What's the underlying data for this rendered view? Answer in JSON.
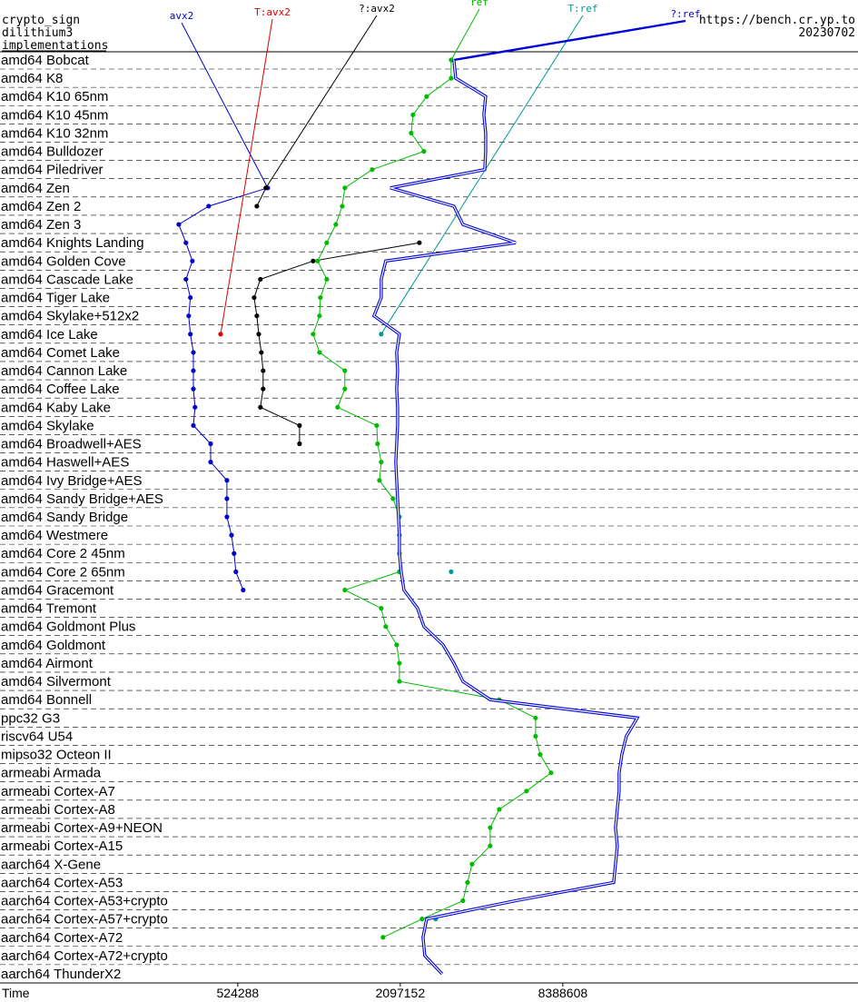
{
  "chart_data": {
    "type": "line",
    "title_lines": [
      "crypto_sign",
      "dilithium3",
      "implementations"
    ],
    "source": "https://bench.cr.yp.to",
    "date": "20230702",
    "xlabel": "Time",
    "log_x": true,
    "xlim": [
      69000,
      104000000
    ],
    "xticks": [
      524288,
      2097152,
      8388608
    ],
    "categories": [
      "amd64 Bobcat",
      "amd64 K8",
      "amd64 K10 65nm",
      "amd64 K10 45nm",
      "amd64 K10 32nm",
      "amd64 Bulldozer",
      "amd64 Piledriver",
      "amd64 Zen",
      "amd64 Zen 2",
      "amd64 Zen 3",
      "amd64 Knights Landing",
      "amd64 Golden Cove",
      "amd64 Cascade Lake",
      "amd64 Tiger Lake",
      "amd64 Skylake+512x2",
      "amd64 Ice Lake",
      "amd64 Comet Lake",
      "amd64 Cannon Lake",
      "amd64 Coffee Lake",
      "amd64 Kaby Lake",
      "amd64 Skylake",
      "amd64 Broadwell+AES",
      "amd64 Haswell+AES",
      "amd64 Ivy Bridge+AES",
      "amd64 Sandy Bridge+AES",
      "amd64 Sandy Bridge",
      "amd64 Westmere",
      "amd64 Core 2 45nm",
      "amd64 Core 2 65nm",
      "amd64 Gracemont",
      "amd64 Tremont",
      "amd64 Goldmont Plus",
      "amd64 Goldmont",
      "amd64 Airmont",
      "amd64 Silvermont",
      "amd64 Bonnell",
      "ppc32 G3",
      "riscv64 U54",
      "mipso32 Octeon II",
      "armeabi Armada",
      "armeabi Cortex-A7",
      "armeabi Cortex-A8",
      "armeabi Cortex-A9+NEON",
      "armeabi Cortex-A15",
      "aarch64 X-Gene",
      "aarch64 Cortex-A53",
      "aarch64 Cortex-A53+crypto",
      "aarch64 Cortex-A57+crypto",
      "aarch64 Cortex-A72",
      "aarch64 Cortex-A72+crypto",
      "aarch64 ThunderX2"
    ],
    "series": [
      {
        "name": "avx2",
        "color": "#0000cc",
        "markers": true,
        "double": false,
        "values": [
          null,
          null,
          null,
          null,
          null,
          null,
          null,
          677000,
          409000,
          317000,
          337000,
          356000,
          337000,
          350000,
          345000,
          350000,
          359000,
          359000,
          359000,
          364000,
          359000,
          416000,
          416000,
          478000,
          478000,
          478000,
          497000,
          508000,
          516000,
          549000,
          null,
          null,
          null,
          null,
          null,
          null,
          null,
          null,
          null,
          null,
          null,
          null,
          null,
          null,
          null,
          null,
          null,
          null,
          null,
          null,
          null
        ]
      },
      {
        "name": "T:avx2",
        "color": "#dd0000",
        "markers": true,
        "double": false,
        "values": [
          null,
          null,
          null,
          null,
          null,
          null,
          null,
          null,
          null,
          null,
          null,
          null,
          null,
          null,
          null,
          453000,
          null,
          null,
          null,
          null,
          null,
          null,
          null,
          null,
          null,
          null,
          null,
          null,
          null,
          null,
          null,
          null,
          null,
          null,
          null,
          null,
          null,
          null,
          null,
          null,
          null,
          null,
          null,
          null,
          null,
          null,
          null,
          null,
          null,
          null,
          null
        ]
      },
      {
        "name": "?:avx2",
        "color": "#000000",
        "markers": true,
        "double": false,
        "values": [
          null,
          null,
          null,
          null,
          null,
          null,
          null,
          666000,
          617000,
          null,
          2468000,
          997000,
          636000,
          603000,
          617000,
          627000,
          641000,
          651000,
          651000,
          636000,
          888000,
          888000,
          null,
          null,
          null,
          null,
          null,
          null,
          null,
          null,
          null,
          null,
          null,
          null,
          null,
          null,
          null,
          null,
          null,
          null,
          null,
          null,
          null,
          null,
          null,
          null,
          null,
          null,
          null,
          null,
          null
        ]
      },
      {
        "name": "ref",
        "color": "#00bb00",
        "markers": true,
        "double": false,
        "values": [
          3236000,
          3236000,
          2625000,
          2337000,
          2301000,
          2565000,
          1650000,
          1307000,
          1278000,
          1210000,
          1120000,
          1036000,
          1120000,
          1061000,
          1053000,
          997000,
          1053000,
          1307000,
          1307000,
          1229000,
          1715000,
          1728000,
          1782000,
          1755000,
          1971000,
          2081000,
          2081000,
          2081000,
          2081000,
          1307000,
          1782000,
          1852000,
          2033000,
          2081000,
          2081000,
          4879000,
          6649000,
          6649000,
          6914000,
          7586000,
          6154000,
          4879000,
          4514000,
          4514000,
          3868000,
          3720000,
          3578000,
          2525000,
          1810000,
          null,
          null
        ]
      },
      {
        "name": "T:ref",
        "color": "#009999",
        "markers": true,
        "double": false,
        "values": [
          null,
          null,
          null,
          null,
          null,
          null,
          null,
          null,
          null,
          null,
          null,
          null,
          null,
          null,
          null,
          1782000,
          null,
          null,
          null,
          null,
          null,
          null,
          null,
          null,
          null,
          null,
          null,
          null,
          3236000,
          null,
          null,
          null,
          null,
          null,
          null,
          null,
          null,
          null,
          null,
          null,
          null,
          null,
          null,
          null,
          null,
          null,
          null,
          2837000,
          null,
          null,
          null
        ]
      },
      {
        "name": "?:ref",
        "color": "#0000dd",
        "markers": false,
        "double": true,
        "values": [
          3312000,
          3364000,
          4342000,
          4277000,
          4342000,
          4342000,
          4309000,
          1926000,
          3312000,
          3578000,
          5608000,
          1852000,
          1782000,
          1782000,
          1675000,
          2081000,
          2033000,
          2049000,
          2033000,
          2049000,
          2049000,
          2033000,
          2017000,
          2033000,
          2049000,
          2065000,
          2081000,
          2081000,
          2113000,
          2163000,
          2430000,
          2565000,
          3018000,
          3312000,
          3578000,
          4514000,
          15830000,
          14420000,
          13880000,
          13560000,
          13560000,
          13350000,
          13140000,
          13350000,
          13140000,
          12940000,
          5608000,
          2625000,
          2545000,
          2585000,
          2995000
        ]
      }
    ]
  }
}
